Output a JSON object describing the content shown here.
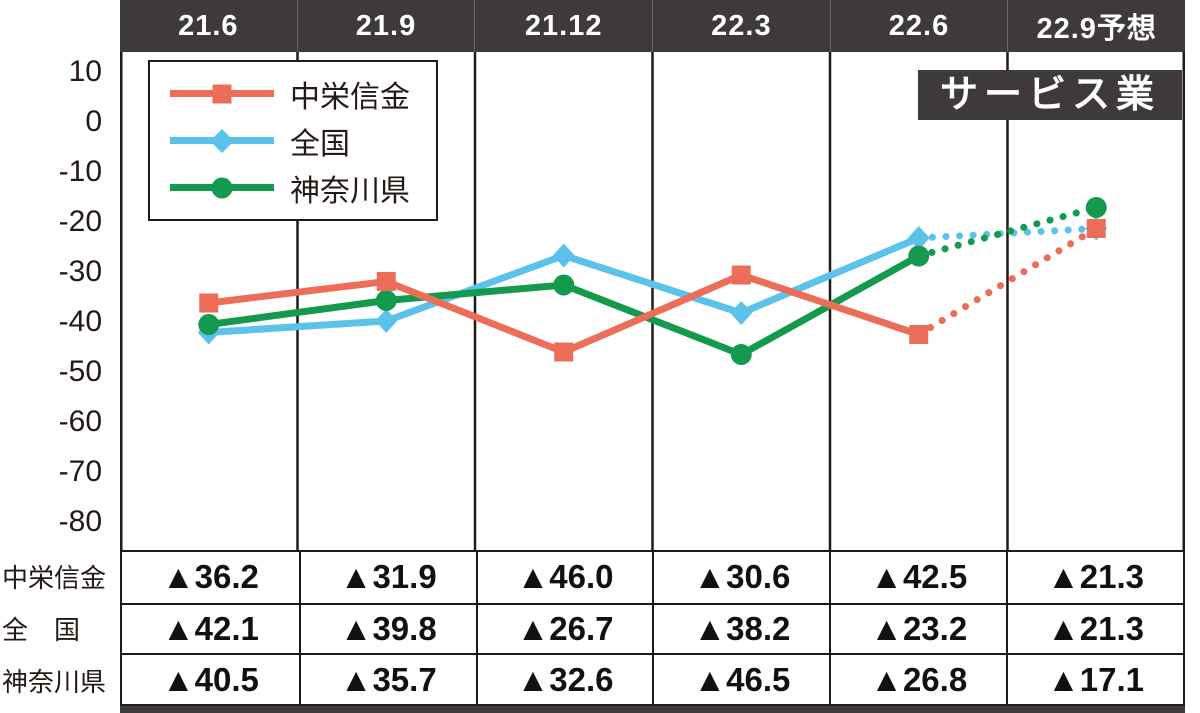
{
  "chart_data": {
    "type": "line",
    "title": "サービス業",
    "categories": [
      "21.6",
      "21.9",
      "21.12",
      "22.3",
      "22.6",
      "22.9予想"
    ],
    "y_ticks": [
      10,
      0,
      -10,
      -20,
      -30,
      -40,
      -50,
      -60,
      -70,
      -80
    ],
    "ylim": [
      -86,
      14
    ],
    "grid": "vertical-only",
    "legend_position": "top-left",
    "forecast_last_segment": true,
    "series": [
      {
        "key": "chuei-shinkin",
        "name": "中栄信金",
        "marker": "square",
        "color": "#ec6d58",
        "values": [
          -36.2,
          -31.9,
          -46.0,
          -30.6,
          -42.5,
          -21.3
        ]
      },
      {
        "key": "zenkoku",
        "name": "全国",
        "marker": "diamond",
        "color": "#5bc2ea",
        "values": [
          -42.1,
          -39.8,
          -26.7,
          -38.2,
          -23.2,
          -21.3
        ]
      },
      {
        "key": "kanagawa",
        "name": "神奈川県",
        "marker": "circle",
        "color": "#149a4e",
        "values": [
          -40.5,
          -35.7,
          -32.6,
          -46.5,
          -26.8,
          -17.1
        ]
      }
    ]
  },
  "table": {
    "row_labels": [
      "中栄信金",
      "全　国",
      "神奈川県"
    ],
    "rows": [
      [
        "▲36.2",
        "▲31.9",
        "▲46.0",
        "▲30.6",
        "▲42.5",
        "▲21.3"
      ],
      [
        "▲42.1",
        "▲39.8",
        "▲26.7",
        "▲38.2",
        "▲23.2",
        "▲21.3"
      ],
      [
        "▲40.5",
        "▲35.7",
        "▲32.6",
        "▲46.5",
        "▲26.8",
        "▲17.1"
      ]
    ]
  },
  "colors": {
    "header_bg": "#3e3a39",
    "title_bg": "#3e3a39",
    "grid": "#1e1a19",
    "text": "#231815"
  }
}
